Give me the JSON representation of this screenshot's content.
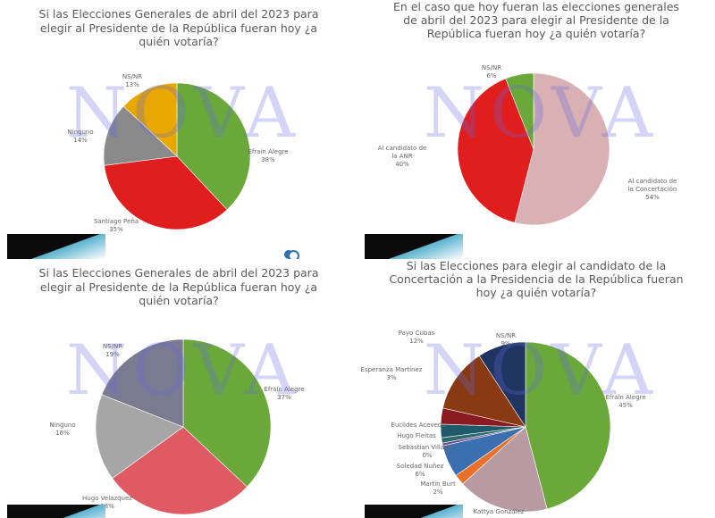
{
  "chart_data": [
    {
      "type": "pie",
      "title": "Si las Elecciones Generales de abril del 2023 para\nelegir al  Presidente de la República fueran hoy ¿a\nquién votaría?",
      "slices": [
        {
          "label": "Efraín Alegre",
          "value": 38,
          "value_label": "38%",
          "color": "#6aa83a"
        },
        {
          "label": "Santiago Peña",
          "value": 35,
          "value_label": "35%",
          "color": "#e01e1e"
        },
        {
          "label": "Ninguno",
          "value": 14,
          "value_label": "14%",
          "color": "#8a8a8a"
        },
        {
          "label": "NS/NR",
          "value": 13,
          "value_label": "13%",
          "color": "#e8a800"
        }
      ]
    },
    {
      "type": "pie",
      "title": "En el caso que hoy fueran las elecciones generales\nde abril del 2023 para elegir al Presidente de la\nRepública fueran hoy ¿a quién votaría?",
      "slices": [
        {
          "label": "Al candidato de la Concertación",
          "value": 54,
          "value_label": "54%",
          "color": "#d9b0b3"
        },
        {
          "label": "Al candidato de la ANR",
          "value": 40,
          "value_label": "40%",
          "color": "#e01e1e"
        },
        {
          "label": "NS/NR",
          "value": 6,
          "value_label": "6%",
          "color": "#6aa83a"
        }
      ]
    },
    {
      "type": "pie",
      "title": "Si las Elecciones Generales de abril del 2023 para\nelegir al  Presidente de la República fueran hoy ¿a\nquién votaría?",
      "slices": [
        {
          "label": "Efraín Alegre",
          "value": 37,
          "value_label": "37%",
          "color": "#6aa83a"
        },
        {
          "label": "Hugo Velazquez",
          "value": 28,
          "value_label": "28%",
          "color": "#e05a64"
        },
        {
          "label": "Ninguno",
          "value": 16,
          "value_label": "16%",
          "color": "#a6a6a6"
        },
        {
          "label": "NS/NR",
          "value": 19,
          "value_label": "19%",
          "color": "#7a7a90"
        }
      ]
    },
    {
      "type": "pie",
      "title": "Si las Elecciones para elegir al candidato de la\nConcertación a la Presidencia de la República fueran\nhoy ¿a quién votaría?",
      "slices": [
        {
          "label": "Efraín Alegre",
          "value": 45,
          "value_label": "45%",
          "color": "#6aa83a"
        },
        {
          "label": "Kattya González",
          "value": 17,
          "value_label": "",
          "color": "#b89aa2"
        },
        {
          "label": "Martin Burt",
          "value": 2,
          "value_label": "2%",
          "color": "#e8702a"
        },
        {
          "label": "Soledad Nuñez",
          "value": 6,
          "value_label": "6%",
          "color": "#3c6fb0"
        },
        {
          "label": "Sebastian Villarejo",
          "value": 0.5,
          "value_label": "0%",
          "color": "#6b4a8a"
        },
        {
          "label": "Hugo Fleitas",
          "value": 1,
          "value_label": "",
          "color": "#2a6a6e"
        },
        {
          "label": "Euclides Acevedo",
          "value": 2.5,
          "value_label": "",
          "color": "#1f5a6a"
        },
        {
          "label": "Esperanza Martínez",
          "value": 3,
          "value_label": "3%",
          "color": "#8a1a20"
        },
        {
          "label": "Payo Cubas",
          "value": 12,
          "value_label": "12%",
          "color": "#8a3a12"
        },
        {
          "label": "NS/NR",
          "value": 9,
          "value_label": "9%",
          "color": "#1f3560"
        }
      ]
    }
  ],
  "watermark": "NOVA"
}
